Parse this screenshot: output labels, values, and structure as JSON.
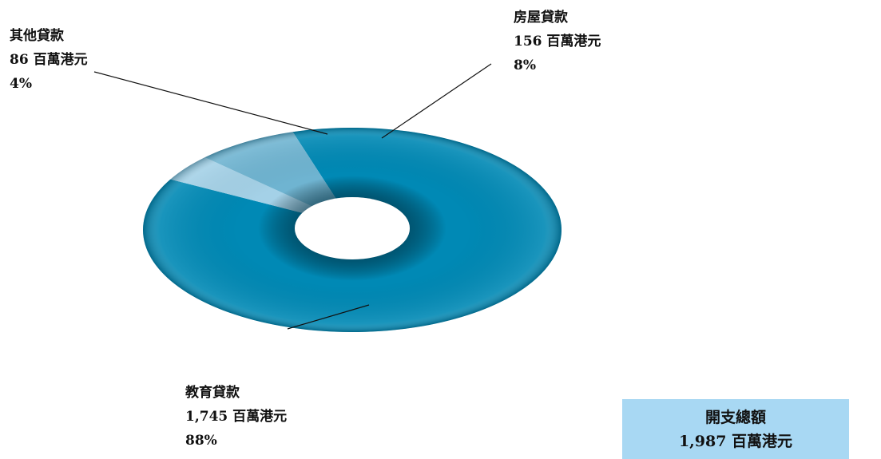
{
  "chart_data": {
    "type": "pie",
    "style": "3d-donut",
    "legend": "none",
    "slices": [
      {
        "label": "教育貸款",
        "value_text": "1,745 百萬港元",
        "value": 1745,
        "percent_text": "88%",
        "color": "#0089b5"
      },
      {
        "label": "其他貸款",
        "value_text": "86 百萬港元",
        "value": 86,
        "percent_text": "4%",
        "color": "#a4d1e7"
      },
      {
        "label": "房屋貸款",
        "value_text": "156 百萬港元",
        "value": 156,
        "percent_text": "8%",
        "color": "#6fb4d1"
      }
    ]
  },
  "total": {
    "title": "開支總額",
    "value_text": "1,987 百萬港元",
    "box_color": "#a8d8f3"
  }
}
